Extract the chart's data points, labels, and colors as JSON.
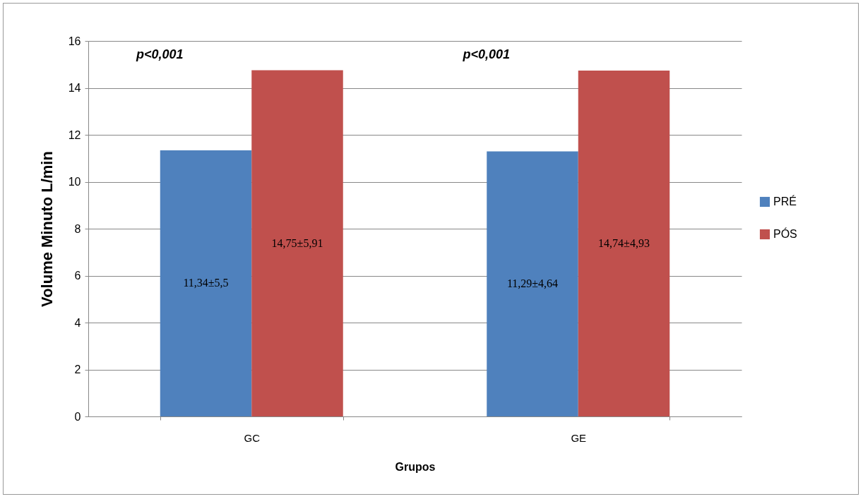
{
  "chart_data": {
    "type": "bar",
    "xlabel": "Grupos",
    "ylabel": "Volume Minuto L/min",
    "categories": [
      "GC",
      "GE"
    ],
    "series": [
      {
        "name": "PRÉ",
        "color": "#4f81bd",
        "values": [
          11.34,
          11.29
        ],
        "value_labels": [
          "11,34±5,5",
          "11,29±4,64"
        ]
      },
      {
        "name": "PÓS",
        "color": "#c0504d",
        "values": [
          14.75,
          14.74
        ],
        "value_labels": [
          "14,75±5,91",
          "14,74±4,93"
        ]
      }
    ],
    "ylim": [
      0,
      16
    ],
    "yticks": [
      0,
      2,
      4,
      6,
      8,
      10,
      12,
      14,
      16
    ],
    "grid": "y",
    "legend": "right",
    "annotations": [
      "p<0,001",
      "p<0,001"
    ]
  }
}
